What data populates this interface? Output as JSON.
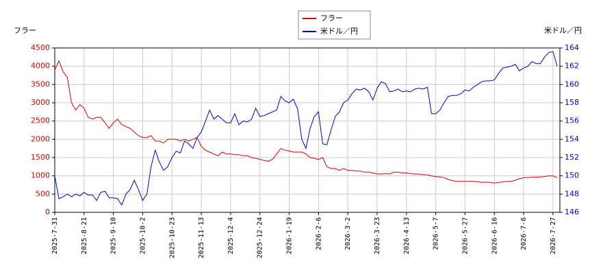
{
  "chart_data": {
    "type": "line",
    "ylabel": "フラー",
    "y2label": "米ドル／円",
    "categories": [
      "2025-7-31",
      null,
      null,
      null,
      null,
      null,
      null,
      "2025-8-21",
      null,
      null,
      null,
      null,
      null,
      null,
      "2025-9-10",
      null,
      null,
      null,
      null,
      null,
      null,
      "2025-10-2",
      null,
      null,
      null,
      null,
      null,
      null,
      "2025-10-23",
      null,
      null,
      null,
      null,
      null,
      null,
      "2025-11-13",
      null,
      null,
      null,
      null,
      null,
      null,
      "2025-12-4",
      null,
      null,
      null,
      null,
      null,
      null,
      "2025-12-24",
      null,
      null,
      null,
      null,
      null,
      null,
      "2026-1-19",
      null,
      null,
      null,
      null,
      null,
      null,
      "2026-2-6",
      null,
      null,
      null,
      null,
      null,
      null,
      "2026-3-2",
      null,
      null,
      null,
      null,
      null,
      null,
      "2026-3-23",
      null,
      null,
      null,
      null,
      null,
      null,
      "2026-4-13",
      null,
      null,
      null,
      null,
      null,
      null,
      "2026-5-7",
      null,
      null,
      null,
      null,
      null,
      null,
      "2026-5-27",
      null,
      null,
      null,
      null,
      null,
      null,
      "2026-6-16",
      null,
      null,
      null,
      null,
      null,
      null,
      "2026-7-6",
      null,
      null,
      null,
      null,
      null,
      null,
      "2026-7-27",
      null
    ],
    "series": [
      {
        "name": "フラー",
        "color": "#dd0000",
        "axis": "y",
        "values": [
          3900,
          4150,
          3850,
          3700,
          3000,
          2800,
          2950,
          2850,
          2600,
          2550,
          2600,
          2600,
          2450,
          2300,
          2450,
          2550,
          2400,
          2350,
          2300,
          2200,
          2100,
          2050,
          2050,
          2100,
          1950,
          1950,
          1900,
          2000,
          2000,
          2000,
          1950,
          2000,
          1950,
          2000,
          2050,
          1800,
          1700,
          1650,
          1600,
          1550,
          1650,
          1600,
          1600,
          1580,
          1580,
          1550,
          1550,
          1500,
          1480,
          1450,
          1420,
          1400,
          1450,
          1600,
          1750,
          1700,
          1680,
          1650,
          1650,
          1650,
          1600,
          1500,
          1480,
          1450,
          1500,
          1250,
          1200,
          1200,
          1150,
          1200,
          1150,
          1150,
          1130,
          1130,
          1100,
          1100,
          1080,
          1050,
          1050,
          1060,
          1050,
          1100,
          1100,
          1080,
          1080,
          1060,
          1050,
          1050,
          1030,
          1030,
          1000,
          980,
          970,
          950,
          900,
          870,
          850,
          850,
          850,
          850,
          850,
          840,
          820,
          830,
          820,
          800,
          820,
          830,
          850,
          850,
          880,
          920,
          950,
          950,
          960,
          960,
          970,
          980,
          1000,
          1000,
          950
        ]
      },
      {
        "name": "米ドル／円",
        "color": "#0000cc",
        "axis": "y2",
        "values": [
          150,
          147.5,
          147.7,
          148,
          147.7,
          148,
          147.8,
          148.2,
          147.9,
          147.9,
          147.3,
          148.2,
          148.3,
          147.6,
          147.6,
          147.5,
          146.8,
          148,
          148.5,
          149.5,
          148.5,
          147.3,
          148,
          151,
          152.8,
          151.5,
          150.6,
          151,
          152,
          152.7,
          152.5,
          153.8,
          153.5,
          153,
          154.2,
          154.8,
          156,
          157.2,
          156.2,
          156.6,
          156.2,
          155.8,
          155.8,
          156.8,
          155.6,
          156,
          155.9,
          156.2,
          157.4,
          156.5,
          156.6,
          156.8,
          157,
          157.2,
          158.7,
          158.2,
          158,
          158.4,
          157.3,
          154,
          153,
          155.2,
          156.5,
          157,
          153.5,
          153.4,
          155,
          156.5,
          157,
          158,
          158.3,
          159,
          159.5,
          159.4,
          159.6,
          159.2,
          158.3,
          159.6,
          160.3,
          160.1,
          159.2,
          159.3,
          159.5,
          159.2,
          159.3,
          159.2,
          159.5,
          159.6,
          159.5,
          159.7,
          156.8,
          156.8,
          157.2,
          158,
          158.7,
          158.8,
          158.8,
          159,
          159.4,
          159.3,
          159.7,
          160,
          160.3,
          160.4,
          160.4,
          160.5,
          161.2,
          161.8,
          161.9,
          162,
          162.2,
          161.5,
          161.8,
          162,
          162.5,
          162.3,
          162.3,
          163,
          163.5,
          163.6,
          162
        ]
      }
    ],
    "ylim": [
      0,
      4500
    ],
    "yticks": [
      0,
      500,
      1000,
      1500,
      2000,
      2500,
      3000,
      3500,
      4000,
      4500
    ],
    "y2lim": [
      146,
      164
    ],
    "y2ticks": [
      146,
      148,
      150,
      152,
      154,
      156,
      158,
      160,
      162,
      164
    ],
    "grid": true,
    "legend": "top"
  }
}
